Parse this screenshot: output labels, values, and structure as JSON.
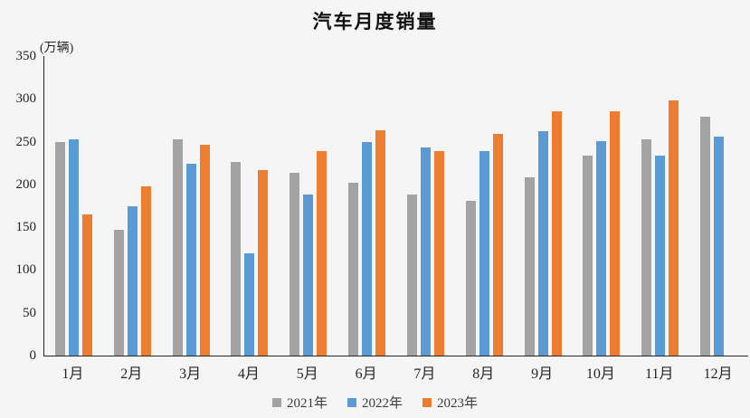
{
  "chart": {
    "title": "汽车月度销量",
    "unit_label": "(万辆)"
  },
  "legend": {
    "items": [
      {
        "label": "2021年",
        "color": "#a3a3a3"
      },
      {
        "label": "2022年",
        "color": "#5b9bd5"
      },
      {
        "label": "2023年",
        "color": "#ed7d31"
      }
    ]
  },
  "chart_data": {
    "type": "bar",
    "title": "汽车月度销量",
    "ylabel": "(万辆)",
    "xlabel": "",
    "categories": [
      "1月",
      "2月",
      "3月",
      "4月",
      "5月",
      "6月",
      "7月",
      "8月",
      "9月",
      "10月",
      "11月",
      "12月"
    ],
    "series": [
      {
        "name": "2021年",
        "color": "#a3a3a3",
        "values": [
          250,
          147,
          253,
          226,
          214,
          202,
          188,
          181,
          208,
          234,
          253,
          279
        ]
      },
      {
        "name": "2022年",
        "color": "#5b9bd5",
        "values": [
          253,
          175,
          224,
          119,
          188,
          250,
          243,
          239,
          262,
          251,
          234,
          256
        ]
      },
      {
        "name": "2023年",
        "color": "#ed7d31",
        "values": [
          165,
          198,
          246,
          217,
          239,
          263,
          239,
          259,
          286,
          286,
          298,
          null
        ]
      }
    ],
    "ylim": [
      0,
      350
    ],
    "yticks": [
      0,
      50,
      100,
      150,
      200,
      250,
      300,
      350
    ],
    "grid": false,
    "legend_position": "bottom"
  }
}
